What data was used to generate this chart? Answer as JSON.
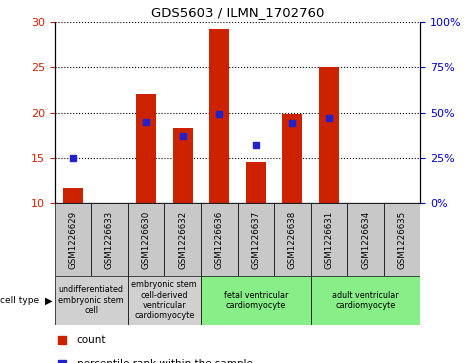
{
  "title": "GDS5603 / ILMN_1702760",
  "samples": [
    "GSM1226629",
    "GSM1226633",
    "GSM1226630",
    "GSM1226632",
    "GSM1226636",
    "GSM1226637",
    "GSM1226638",
    "GSM1226631",
    "GSM1226634",
    "GSM1226635"
  ],
  "counts": [
    11.7,
    10.0,
    22.0,
    18.3,
    29.2,
    14.6,
    19.8,
    25.0,
    10.0,
    10.0
  ],
  "percentiles_pct": [
    25.0,
    null,
    45.0,
    37.0,
    49.0,
    32.0,
    44.0,
    47.0,
    null,
    null
  ],
  "ylim_left": [
    10,
    30
  ],
  "ylim_right": [
    0,
    100
  ],
  "yticks_left": [
    10,
    15,
    20,
    25,
    30
  ],
  "yticks_right": [
    0,
    25,
    50,
    75,
    100
  ],
  "ytick_labels_right": [
    "0%",
    "25%",
    "50%",
    "75%",
    "100%"
  ],
  "bar_color": "#cc2200",
  "dot_color": "#2222cc",
  "bar_bottom": 10,
  "cell_type_groups": [
    {
      "label": "undifferentiated\nembryonic stem\ncell",
      "indices": [
        0,
        1
      ],
      "color": "#d0d0d0"
    },
    {
      "label": "embryonic stem\ncell-derived\nventricular\ncardiomyocyte",
      "indices": [
        2,
        3
      ],
      "color": "#d0d0d0"
    },
    {
      "label": "fetal ventricular\ncardiomyocyte",
      "indices": [
        4,
        5,
        6
      ],
      "color": "#88ee88"
    },
    {
      "label": "adult ventricular\ncardiomyocyte",
      "indices": [
        7,
        8,
        9
      ],
      "color": "#88ee88"
    }
  ],
  "left_tick_color": "#cc2200",
  "right_tick_color": "#0000cc",
  "tick_bg_color": "#c8c8c8"
}
